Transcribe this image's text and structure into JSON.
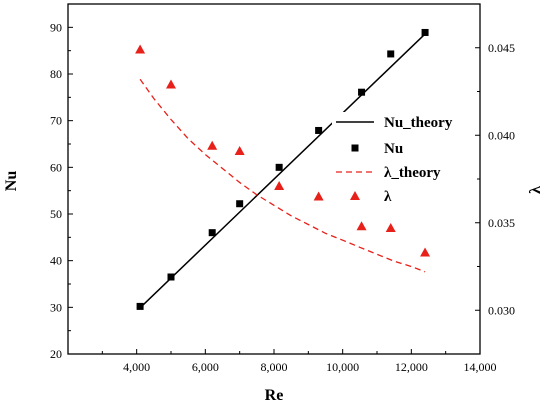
{
  "chart_data": {
    "type": "scatter",
    "x_axis": {
      "label": "Re",
      "range": [
        2000,
        14000
      ],
      "ticks": [
        4000,
        6000,
        8000,
        10000,
        12000,
        14000
      ],
      "tick_labels": [
        "4,000",
        "6,000",
        "8,000",
        "10,000",
        "12,000",
        "14,000"
      ]
    },
    "y_axis_left": {
      "label": "Nu",
      "range": [
        20,
        95
      ],
      "ticks": [
        20,
        30,
        40,
        50,
        60,
        70,
        80,
        90
      ],
      "tick_labels": [
        "20",
        "30",
        "40",
        "50",
        "60",
        "70",
        "80",
        "90"
      ]
    },
    "y_axis_right": {
      "label": "λ",
      "range": [
        0.0275,
        0.0475
      ],
      "ticks": [
        0.03,
        0.035,
        0.04,
        0.045
      ],
      "tick_labels": [
        "0.030",
        "0.035",
        "0.040",
        "0.045"
      ]
    },
    "grid": false,
    "legend_position": "right-center",
    "series": [
      {
        "name": "Nu_theory",
        "kind": "line",
        "axis": "left",
        "color": "#000000",
        "dash": "solid",
        "x": [
          4100,
          12400
        ],
        "y": [
          29.9,
          88.6
        ]
      },
      {
        "name": "Nu",
        "kind": "marker",
        "marker": "square",
        "axis": "left",
        "color": "#000000",
        "x": [
          4100,
          5000,
          6200,
          7000,
          8150,
          9300,
          10550,
          11400,
          12400
        ],
        "y": [
          30.2,
          36.5,
          46.0,
          52.2,
          60.0,
          67.9,
          76.1,
          84.3,
          88.9
        ]
      },
      {
        "name": "λ_theory",
        "kind": "line",
        "axis": "right",
        "color": "#e8201a",
        "dash": "dashed",
        "x": [
          4100,
          4500,
          5000,
          5500,
          6000,
          6500,
          7000,
          7500,
          8000,
          8500,
          9000,
          9500,
          10000,
          10500,
          11000,
          11500,
          12000,
          12400
        ],
        "y": [
          0.0432,
          0.0421,
          0.0409,
          0.0398,
          0.0389,
          0.0381,
          0.0373,
          0.0366,
          0.036,
          0.0354,
          0.0349,
          0.0344,
          0.034,
          0.0336,
          0.0332,
          0.0328,
          0.0325,
          0.0322
        ]
      },
      {
        "name": "λ",
        "kind": "marker",
        "marker": "triangle",
        "axis": "right",
        "color": "#e8201a",
        "x": [
          4100,
          5000,
          6200,
          7000,
          8150,
          9300,
          10550,
          11400,
          12400
        ],
        "y": [
          0.0449,
          0.0429,
          0.0394,
          0.0391,
          0.0371,
          0.0365,
          0.0348,
          0.0347,
          0.0333
        ]
      }
    ]
  }
}
